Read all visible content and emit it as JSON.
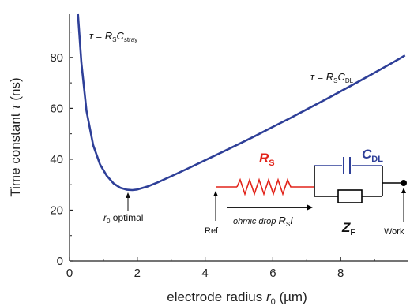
{
  "chart_data": {
    "type": "line",
    "title": "",
    "xlabel": "electrode radius",
    "xlabel_symbol": "r",
    "xlabel_sub": "0",
    "xlabel_unit": "(µm)",
    "ylabel": "Time constant",
    "ylabel_symbol": "τ",
    "ylabel_unit": "(ns)",
    "xlim": [
      0,
      10
    ],
    "ylim": [
      0,
      97
    ],
    "xticks": [
      "0",
      "2",
      "4",
      "6",
      "8"
    ],
    "yticks": [
      "0",
      "20",
      "40",
      "60",
      "80"
    ],
    "grid": false,
    "series": [
      {
        "color": "#2e3f98",
        "x": [
          0.25,
          0.35,
          0.5,
          0.7,
          0.9,
          1.1,
          1.3,
          1.5,
          1.7,
          1.85,
          2.0,
          2.3,
          2.6,
          3.0,
          3.5,
          4.0,
          4.5,
          5.0,
          5.5,
          6.0,
          6.5,
          7.0,
          7.5,
          8.0,
          8.5,
          9.0,
          9.5,
          9.9
        ],
        "y": [
          97,
          78,
          59,
          45.5,
          38,
          33.5,
          30.5,
          28.8,
          28.0,
          27.9,
          28.1,
          29.3,
          30.9,
          33.3,
          36.4,
          39.6,
          42.8,
          46.0,
          49.3,
          52.7,
          56.1,
          59.6,
          63.1,
          66.7,
          70.3,
          74.0,
          77.7,
          80.8
        ]
      }
    ],
    "annotations": {
      "stray": {
        "tau": "τ",
        "eq": " = ",
        "R": "R",
        "R_sub": "S",
        "C": "C",
        "C_sub": "stray"
      },
      "dl": {
        "tau": "τ",
        "eq": " = ",
        "R": "R",
        "R_sub": "S",
        "C": "C",
        "C_sub": "DL"
      },
      "optimal": {
        "r": "r",
        "r_sub": "0",
        "text": " optimal",
        "x": 1.85,
        "y": 27.9
      }
    }
  },
  "circuit": {
    "resistor_label": "R",
    "resistor_sub": "S",
    "capacitor_label": "C",
    "capacitor_sub": "DL",
    "impedance_label": "Z",
    "impedance_sub": "F",
    "ref_label": "Ref",
    "work_label": "Work",
    "ohmic_text": "ohmic drop ",
    "ohmic_R": "R",
    "ohmic_sub": "S",
    "ohmic_I": "I",
    "colors": {
      "resistor": "#e2231a",
      "capacitor": "#2e3f98",
      "wire": "#000000"
    }
  }
}
